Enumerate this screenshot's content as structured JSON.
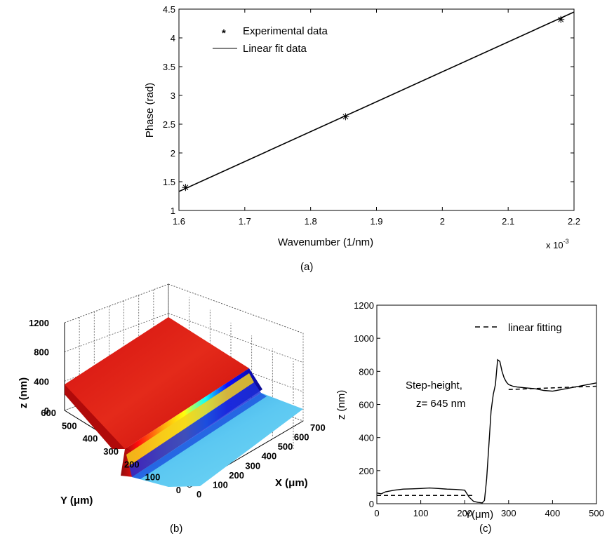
{
  "chart_data": [
    {
      "type": "line",
      "panel": "a",
      "caption": "(a)",
      "xlabel": "Wavenumber (1/nm)",
      "ylabel": "Phase (rad)",
      "x_multiplier_base": "x 10",
      "x_multiplier_exp": "-3",
      "xlim": [
        1.6,
        2.2
      ],
      "ylim": [
        1,
        4.5
      ],
      "x_ticks": [
        1.6,
        1.7,
        1.8,
        1.9,
        2.0,
        2.1,
        2.2
      ],
      "x_tick_labels": [
        "1.6",
        "1.7",
        "1.8",
        "1.9",
        "2",
        "2.1",
        "2.2"
      ],
      "y_ticks": [
        1,
        1.5,
        2,
        2.5,
        3,
        3.5,
        4,
        4.5
      ],
      "y_tick_labels": [
        "1",
        "1.5",
        "2",
        "2.5",
        "3",
        "3.5",
        "4",
        "4.5"
      ],
      "legend_placement": "top-left",
      "series": [
        {
          "name": "Experimental data",
          "marker": "asterisk",
          "x": [
            1.61,
            1.853,
            2.18
          ],
          "y": [
            1.4,
            2.63,
            4.32
          ]
        },
        {
          "name": "Linear fit data",
          "line": "solid",
          "x": [
            1.6,
            2.2
          ],
          "y": [
            1.33,
            4.45
          ]
        }
      ]
    },
    {
      "type": "surface",
      "panel": "b",
      "caption": "(b)",
      "xlabel": "X (μm)",
      "ylabel": "Y (μm)",
      "zlabel": "z (nm)",
      "x_ticks": [
        0,
        100,
        200,
        300,
        400,
        500,
        600,
        700
      ],
      "y_ticks": [
        0,
        100,
        200,
        300,
        400,
        500,
        600
      ],
      "z_ticks": [
        0,
        400,
        800,
        1200
      ],
      "x_tick_labels": [
        "0",
        "100",
        "200",
        "300",
        "400",
        "500",
        "600",
        "700"
      ],
      "y_tick_labels": [
        "0",
        "100",
        "200",
        "300",
        "400",
        "500",
        "600"
      ],
      "z_tick_labels": [
        "0",
        "400",
        "800",
        "1200"
      ],
      "surface": {
        "low_level_nm": 0,
        "high_level_nm": 680,
        "step_location_y_um": 230,
        "colormap": "jet"
      }
    },
    {
      "type": "line",
      "panel": "c",
      "caption": "(c)",
      "xlabel": "Y(μm)",
      "ylabel": "z (nm)",
      "xlim": [
        0,
        500
      ],
      "ylim": [
        0,
        1200
      ],
      "x_ticks": [
        0,
        100,
        200,
        300,
        400,
        500
      ],
      "x_tick_labels": [
        "0",
        "100",
        "200",
        "300",
        "400",
        "500"
      ],
      "y_ticks": [
        0,
        200,
        400,
        600,
        800,
        1000,
        1200
      ],
      "y_tick_labels": [
        "0",
        "200",
        "400",
        "600",
        "800",
        "1000",
        "1200"
      ],
      "legend_placement": "top-right",
      "annotation_line1": "Step-height,",
      "annotation_line2": "z= 645 nm",
      "series": [
        {
          "name": "",
          "line": "solid",
          "x": [
            0,
            10,
            20,
            40,
            60,
            80,
            100,
            120,
            140,
            160,
            180,
            200,
            210,
            220,
            230,
            240,
            245,
            250,
            255,
            260,
            265,
            270,
            275,
            280,
            285,
            290,
            295,
            300,
            310,
            320,
            340,
            360,
            380,
            400,
            420,
            440,
            460,
            480,
            500
          ],
          "y": [
            65,
            60,
            72,
            82,
            88,
            90,
            92,
            95,
            92,
            88,
            86,
            82,
            40,
            15,
            8,
            5,
            20,
            150,
            350,
            560,
            660,
            720,
            870,
            860,
            800,
            760,
            735,
            720,
            710,
            705,
            700,
            695,
            685,
            680,
            690,
            700,
            710,
            720,
            730
          ]
        },
        {
          "name": "linear fitting",
          "line": "dashed",
          "segments": [
            {
              "x": [
                0,
                220
              ],
              "y": [
                50,
                50
              ]
            },
            {
              "x": [
                300,
                500
              ],
              "y": [
                690,
                710
              ]
            }
          ]
        }
      ]
    }
  ]
}
